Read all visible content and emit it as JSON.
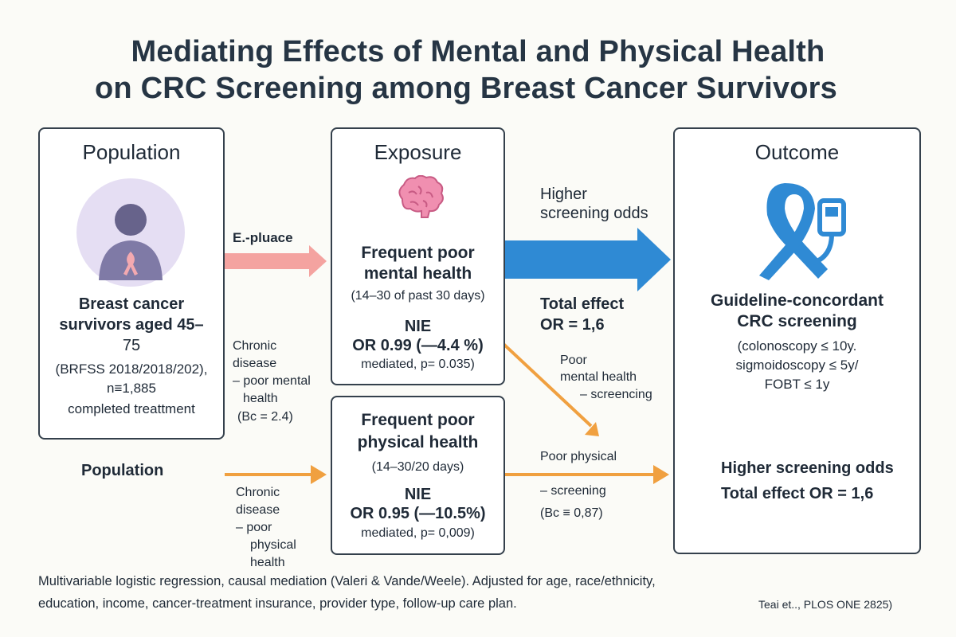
{
  "title": {
    "line1": "Mediating Effects of Mental and Physical Health",
    "line2": "on CRC Screening among Breast Cancer Survivors"
  },
  "population": {
    "header": "Population",
    "icon": "person-ribbon-icon",
    "desc_line1": "Breast cancer",
    "desc_line2": "survivors aged 45–",
    "desc_line3": "75",
    "meta_line1": "(BRFSS 2018/2018/202),",
    "meta_line2": "n≡1,885",
    "meta_line3": "completed treattment"
  },
  "exposure": {
    "header": "Exposure",
    "icon": "brain-icon",
    "label_line1": "Frequent poor",
    "label_line2": "mental health",
    "range": "(14–30 of past 30 days)",
    "nie_label": "NIE",
    "nie_value": "OR 0.99 (—4.4 %)",
    "nie_meta": "mediated, p= 0.035)"
  },
  "physical": {
    "label_line1": "Frequent poor",
    "label_line2": "physical health",
    "range": "(14–30/20 days)",
    "nie_label": "NIE",
    "nie_value": "OR 0.95 (—10.5%)",
    "nie_meta": "mediated, p= 0,009)"
  },
  "outcome": {
    "header": "Outcome",
    "icon": "ribbon-test-icon",
    "label_line1": "Guideline-concordant",
    "label_line2": "CRC screening",
    "detail_line1": "(colonoscopy ≤ 10y.",
    "detail_line2": "sigmoidoscopy ≤ 5y/",
    "detail_line3": "FOBT ≤ 1y",
    "odds_label": "Higher screening odds",
    "odds_total": "Total effect OR = 1,6"
  },
  "labels": {
    "exposure_arrow": "E.-pluace",
    "higher_odds_line1": "Higher",
    "higher_odds_line2": "screening odds",
    "total_effect_line1": "Total effect",
    "total_effect_line2": "OR = 1,6",
    "mental_path_line1": "Poor",
    "mental_path_line2": "mental health",
    "mental_path_line3": "– screencing",
    "chronic_mental_line1": "Chronic",
    "chronic_mental_line2": "disease",
    "chronic_mental_line3": "– poor mental",
    "chronic_mental_line4": "health",
    "chronic_mental_line5": "(Bc = 2.4)",
    "population_lower": "Population",
    "chronic_phys_line1": "Chronic",
    "chronic_phys_line2": "disease",
    "chronic_phys_line3": "– poor",
    "chronic_phys_line4": "physical",
    "chronic_phys_line5": "health",
    "phys_path_line1": "Poor physical",
    "phys_path_line2": "– screening",
    "phys_path_line3": "(Bc ≡ 0,87)"
  },
  "footer": {
    "line1": "Multivariable logistic regression, causal mediation (Valeri & Vande/Weele). Adjusted for age, race/ethnicity,",
    "line2": "education, income, cancer-treatment insurance, provider type, follow-up care plan.",
    "citation": "Teai et.., PLOS ONE 2825)"
  },
  "colors": {
    "blue_arrow": "#2f8ad4",
    "orange_arrow": "#f0a040",
    "pink_arrow": "#f4a3a0",
    "box_border": "#34404c",
    "title_text": "#263544"
  }
}
